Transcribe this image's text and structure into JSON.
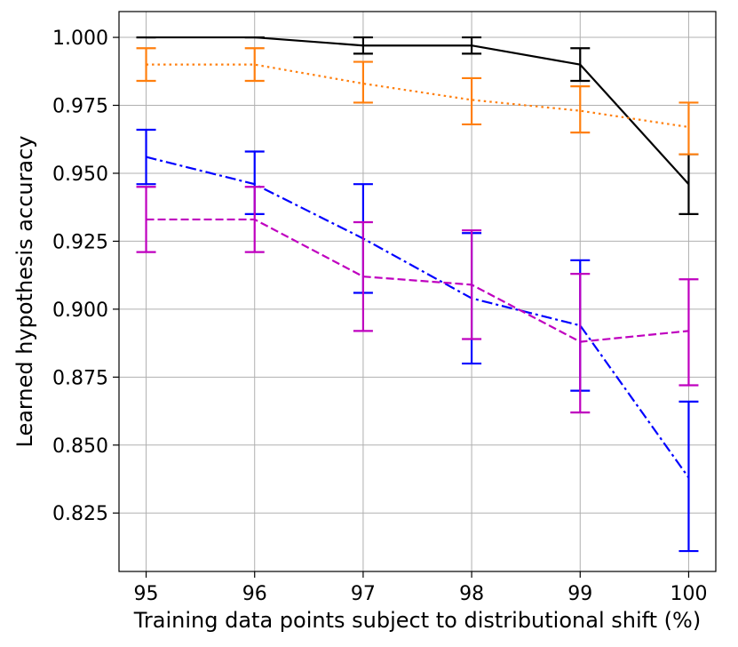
{
  "chart_data": {
    "type": "line",
    "xlabel": "Training data points subject to distributional shift (%)",
    "ylabel": "Learned hypothesis accuracy",
    "xlim": [
      94.75,
      100.25
    ],
    "ylim": [
      0.8035,
      1.0095
    ],
    "x_ticks": [
      "95",
      "96",
      "97",
      "98",
      "99",
      "100"
    ],
    "y_ticks": [
      "0.825",
      "0.850",
      "0.875",
      "0.900",
      "0.925",
      "0.950",
      "0.975",
      "1.000"
    ],
    "grid": true,
    "x": [
      95,
      96,
      97,
      98,
      99,
      100
    ],
    "series": [
      {
        "color": "#000000",
        "dash": "solid",
        "values": [
          1.0,
          1.0,
          0.997,
          0.997,
          0.99,
          0.946
        ],
        "err_low": [
          1.0,
          1.0,
          0.994,
          0.994,
          0.984,
          0.935
        ],
        "err_high": [
          1.0,
          1.0,
          1.0,
          1.0,
          0.996,
          0.957
        ]
      },
      {
        "color": "#ff7f0e",
        "dash": "dotted",
        "values": [
          0.99,
          0.99,
          0.983,
          0.977,
          0.973,
          0.967
        ],
        "err_low": [
          0.984,
          0.984,
          0.976,
          0.968,
          0.965,
          0.957
        ],
        "err_high": [
          0.996,
          0.996,
          0.991,
          0.985,
          0.982,
          0.976
        ]
      },
      {
        "color": "#0000ff",
        "dash": "dashdot",
        "values": [
          0.956,
          0.946,
          0.926,
          0.904,
          0.894,
          0.838
        ],
        "err_low": [
          0.946,
          0.935,
          0.906,
          0.88,
          0.87,
          0.811
        ],
        "err_high": [
          0.966,
          0.958,
          0.946,
          0.928,
          0.918,
          0.866
        ]
      },
      {
        "color": "#bf00bf",
        "dash": "dashed",
        "values": [
          0.933,
          0.933,
          0.912,
          0.909,
          0.888,
          0.892
        ],
        "err_low": [
          0.921,
          0.921,
          0.892,
          0.889,
          0.862,
          0.872
        ],
        "err_high": [
          0.945,
          0.945,
          0.932,
          0.929,
          0.913,
          0.911
        ]
      }
    ]
  }
}
